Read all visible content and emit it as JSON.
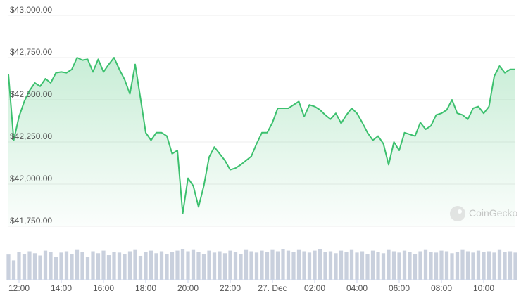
{
  "chart_data": {
    "type": "line",
    "series": [
      {
        "color": "#3cc06e",
        "values": [
          42650,
          42260,
          42400,
          42490,
          42555,
          42600,
          42580,
          42625,
          42600,
          42660,
          42665,
          42660,
          42680,
          42750,
          42735,
          42740,
          42665,
          42740,
          42665,
          42710,
          42750,
          42680,
          42620,
          42535,
          42710,
          42510,
          42305,
          42260,
          42305,
          42305,
          42285,
          42180,
          42200,
          41825,
          42035,
          41990,
          41865,
          41990,
          42160,
          42220,
          42180,
          42140,
          42085,
          42095,
          42115,
          42140,
          42165,
          42240,
          42305,
          42305,
          42365,
          42450,
          42450,
          42450,
          42470,
          42490,
          42400,
          42470,
          42460,
          42440,
          42410,
          42385,
          42420,
          42360,
          42410,
          42450,
          42420,
          42365,
          42305,
          42260,
          42285,
          42240,
          42115,
          42250,
          42200,
          42305,
          42295,
          42285,
          42365,
          42325,
          42345,
          42410,
          42420,
          42440,
          42500,
          42420,
          42410,
          42385,
          42450,
          42460,
          42420,
          42460,
          42640,
          42700,
          42660,
          42680,
          42680
        ]
      }
    ],
    "volume": {
      "color": "#c9d0dd",
      "vlim": [
        0,
        100
      ],
      "values": [
        78,
        60,
        85,
        80,
        88,
        82,
        75,
        90,
        86,
        70,
        84,
        88,
        80,
        92,
        85,
        70,
        88,
        82,
        90,
        76,
        86,
        84,
        80,
        88,
        92,
        74,
        86,
        90,
        82,
        88,
        80,
        85,
        90,
        94,
        88,
        92,
        86,
        80,
        90,
        84,
        88,
        82,
        90,
        86,
        80,
        92,
        88,
        84,
        90,
        86,
        92,
        88,
        94,
        90,
        86,
        92,
        88,
        84,
        90,
        94,
        86,
        88,
        82,
        90,
        86,
        92,
        84,
        88,
        80,
        90,
        86,
        82,
        92,
        88,
        84,
        90,
        86,
        80,
        88,
        92,
        86,
        84,
        90,
        88,
        82,
        86,
        92,
        88,
        84,
        90,
        86,
        88,
        84,
        92,
        86,
        88,
        84
      ]
    },
    "ylim": [
      41750,
      43000
    ],
    "yticks": [
      {
        "value": 41750,
        "label": "$41,750.00"
      },
      {
        "value": 42000,
        "label": "$42,000.00"
      },
      {
        "value": 42250,
        "label": "$42,250.00"
      },
      {
        "value": 42500,
        "label": "$42,500.00"
      },
      {
        "value": 42750,
        "label": "$42,750.00"
      },
      {
        "value": 43000,
        "label": "$43,000.00"
      }
    ],
    "xticks": [
      {
        "value": 2,
        "label": "12:00"
      },
      {
        "value": 10,
        "label": "14:00"
      },
      {
        "value": 18,
        "label": "16:00"
      },
      {
        "value": 26,
        "label": "18:00"
      },
      {
        "value": 34,
        "label": "20:00"
      },
      {
        "value": 42,
        "label": "22:00"
      },
      {
        "value": 50,
        "label": "27. Dec"
      },
      {
        "value": 58,
        "label": "02:00"
      },
      {
        "value": 66,
        "label": "04:00"
      },
      {
        "value": 74,
        "label": "06:00"
      },
      {
        "value": 82,
        "label": "08:00"
      },
      {
        "value": 90,
        "label": "10:00"
      }
    ],
    "grid": true,
    "watermark": "CoinGecko"
  }
}
